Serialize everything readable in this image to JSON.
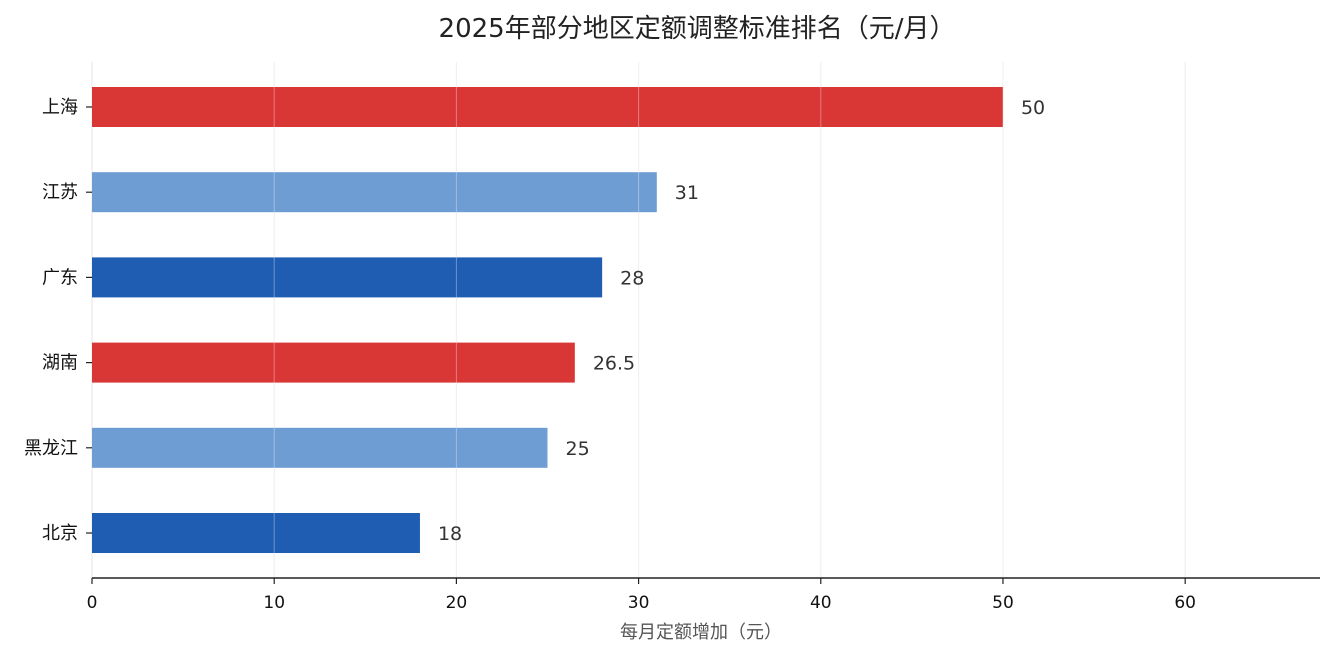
{
  "chart_data": {
    "type": "bar",
    "orientation": "horizontal",
    "title": "2025年部分地区定额调整标准排名（元/月）",
    "xlabel": "每月定额增加（元）",
    "ylabel": "",
    "categories": [
      "上海",
      "江苏",
      "广东",
      "湖南",
      "黑龙江",
      "北京"
    ],
    "values": [
      50,
      31,
      28,
      26.5,
      25,
      18
    ],
    "data_labels": [
      "50",
      "31",
      "28",
      "26.5",
      "25",
      "18"
    ],
    "colors": [
      "#d93636",
      "#6e9dd4",
      "#1f5db2",
      "#d93636",
      "#6e9dd4",
      "#1f5db2"
    ],
    "xlim": [
      0,
      67.4
    ],
    "xticks": [
      0,
      10,
      20,
      30,
      40,
      50,
      60
    ],
    "xtick_labels": [
      "0",
      "10",
      "20",
      "30",
      "40",
      "50",
      "60"
    ],
    "grid": "vertical",
    "legend": "none"
  }
}
